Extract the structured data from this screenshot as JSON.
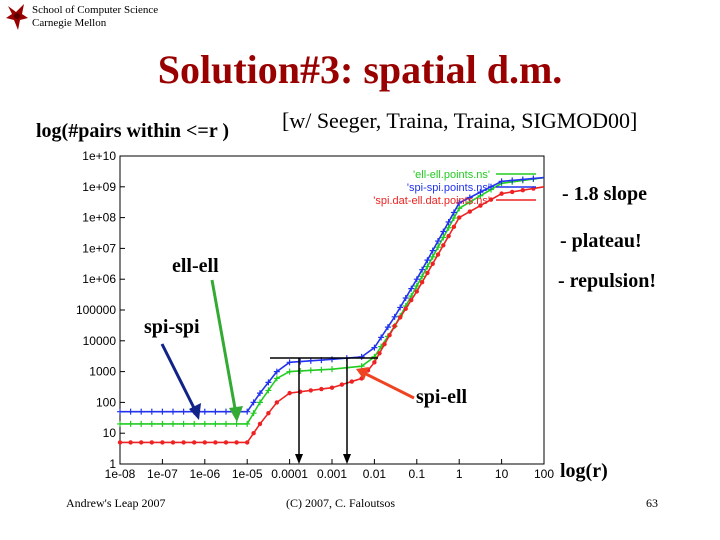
{
  "header": {
    "school_line1": "School of Computer Science",
    "school_line2": "Carnegie Mellon"
  },
  "slide": {
    "title": "Solution#3: spatial d.m.",
    "ylabel": "log(#pairs within <=r )",
    "citation": "[w/ Seeger, Traina, Traina, SIGMOD00]",
    "notes": [
      "- 1.8 slope",
      "- plateau!",
      "- repulsion!"
    ],
    "curve_labels": {
      "ell": "ell-ell",
      "spi": "spi-spi",
      "spiell": "spi-ell"
    },
    "xlabel": "log(r)"
  },
  "footer": {
    "left": "Andrew's Leap 2007",
    "center": "(C) 2007, C. Faloutsos",
    "page": "63"
  },
  "colors": {
    "title": "#990000",
    "ell": "#22cc22",
    "spi": "#2233ee",
    "spiell": "#ee2222",
    "arrow_ell": "#33aa33",
    "arrow_spi": "#112288",
    "arrow_spiell": "#ee4422"
  },
  "chart_data": {
    "type": "line",
    "x_scale": "log",
    "y_scale": "log",
    "xlim": [
      1e-08,
      100
    ],
    "ylim": [
      1,
      10000000000.0
    ],
    "x_ticks": [
      "1e-08",
      "1e-07",
      "1e-06",
      "1e-05",
      "0.0001",
      "0.001",
      "0.01",
      "0.1",
      "1",
      "10",
      "100"
    ],
    "y_ticks": [
      "1",
      "10",
      "100",
      "1000",
      "10000",
      "100000",
      "1e+06",
      "1e+07",
      "1e+08",
      "1e+09",
      "1e+10"
    ],
    "legend_position": "top-right",
    "series": [
      {
        "name": "'ell-ell.points.ns'",
        "color": "#22cc22",
        "points": [
          [
            1e-08,
            20
          ],
          [
            1e-05,
            20
          ],
          [
            2e-05,
            100
          ],
          [
            5e-05,
            600
          ],
          [
            0.0001,
            1000
          ],
          [
            0.001,
            1200
          ],
          [
            0.005,
            1500
          ],
          [
            0.01,
            3000
          ],
          [
            0.03,
            30000
          ],
          [
            0.1,
            600000
          ],
          [
            1,
            200000000.0
          ],
          [
            10,
            1300000000.0
          ],
          [
            100,
            2000000000.0
          ]
        ]
      },
      {
        "name": "'spi-spi.points.ns'",
        "color": "#2233ee",
        "points": [
          [
            1e-08,
            50
          ],
          [
            1e-05,
            50
          ],
          [
            2e-05,
            200
          ],
          [
            5e-05,
            1000
          ],
          [
            0.0001,
            2000
          ],
          [
            0.001,
            2500
          ],
          [
            0.005,
            3000
          ],
          [
            0.01,
            6000
          ],
          [
            0.03,
            60000
          ],
          [
            0.1,
            1000000.0
          ],
          [
            1,
            300000000.0
          ],
          [
            10,
            1500000000.0
          ],
          [
            100,
            2000000000.0
          ]
        ]
      },
      {
        "name": "'spi.dat-ell.dat.points.ns'",
        "color": "#ee2222",
        "points": [
          [
            1e-08,
            5
          ],
          [
            1e-05,
            5
          ],
          [
            2e-05,
            20
          ],
          [
            5e-05,
            100
          ],
          [
            0.0001,
            200
          ],
          [
            0.001,
            300
          ],
          [
            0.005,
            600
          ],
          [
            0.01,
            2000
          ],
          [
            0.03,
            30000
          ],
          [
            0.1,
            400000
          ],
          [
            1,
            100000000.0
          ],
          [
            10,
            600000000.0
          ],
          [
            100,
            1000000000.0
          ]
        ]
      }
    ]
  }
}
